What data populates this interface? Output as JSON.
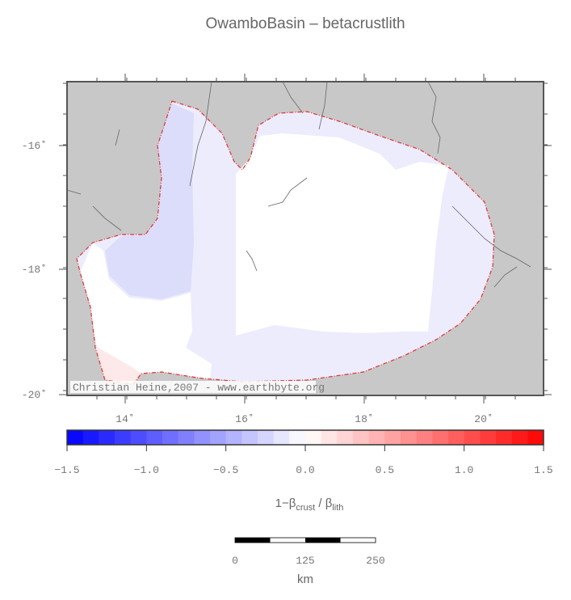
{
  "title": "OwamboBasin – betacrustlith",
  "map": {
    "yticks": [
      "-16˚",
      "-18˚",
      "-20˚"
    ],
    "xticks": [
      "14˚",
      "16˚",
      "18˚",
      "20˚"
    ],
    "credit": "Christian Heine,2007 - www.earthbyte.org"
  },
  "colorbar": {
    "ticks": [
      "−1.5",
      "−1.0",
      "−0.5",
      "0.0",
      "0.5",
      "1.0",
      "1.5"
    ],
    "label_parts": [
      "1−β",
      "crust",
      " / β",
      "lith"
    ]
  },
  "scalebar": {
    "ticks": [
      "0",
      "125",
      "250"
    ],
    "unit": "km"
  }
}
